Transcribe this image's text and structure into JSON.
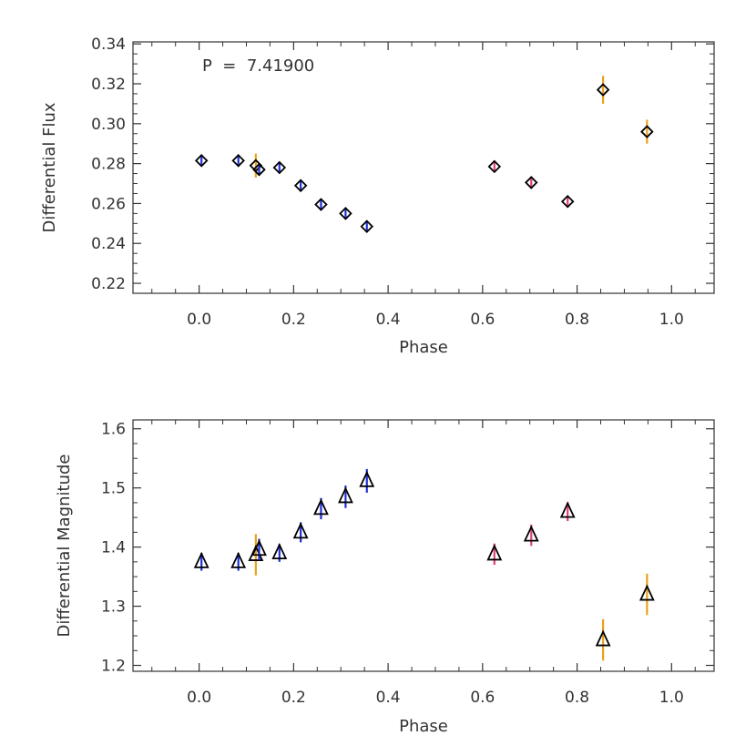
{
  "colors": {
    "blue": "#1f2fd6",
    "pink": "#e0407a",
    "orange": "#e8a21c",
    "axis": "#333333",
    "marker_edge": "#000000"
  },
  "chart_data": [
    {
      "type": "scatter",
      "annotation": "P  =  7.41900",
      "xlabel": "Phase",
      "ylabel": "Differential Flux",
      "xlim": [
        -0.14,
        1.09
      ],
      "ylim": [
        0.215,
        0.341
      ],
      "xticks": [
        0.0,
        0.2,
        0.4,
        0.6,
        0.8,
        1.0
      ],
      "xtick_labels": [
        "0.0",
        "0.2",
        "0.4",
        "0.6",
        "0.8",
        "1.0"
      ],
      "yticks": [
        0.22,
        0.24,
        0.26,
        0.28,
        0.3,
        0.32,
        0.34
      ],
      "ytick_labels": [
        "0.22",
        "0.24",
        "0.26",
        "0.28",
        "0.30",
        "0.32",
        "0.34"
      ],
      "marker": "diamond",
      "points": [
        {
          "x": 0.005,
          "y": 0.2815,
          "err": 0.003,
          "color": "blue"
        },
        {
          "x": 0.083,
          "y": 0.2815,
          "err": 0.003,
          "color": "blue"
        },
        {
          "x": 0.12,
          "y": 0.279,
          "err": 0.006,
          "color": "orange"
        },
        {
          "x": 0.127,
          "y": 0.277,
          "err": 0.003,
          "color": "blue"
        },
        {
          "x": 0.17,
          "y": 0.278,
          "err": 0.003,
          "color": "blue"
        },
        {
          "x": 0.215,
          "y": 0.269,
          "err": 0.003,
          "color": "blue"
        },
        {
          "x": 0.258,
          "y": 0.2595,
          "err": 0.003,
          "color": "blue"
        },
        {
          "x": 0.31,
          "y": 0.255,
          "err": 0.003,
          "color": "blue"
        },
        {
          "x": 0.355,
          "y": 0.2485,
          "err": 0.003,
          "color": "blue"
        },
        {
          "x": 0.625,
          "y": 0.2785,
          "err": 0.003,
          "color": "pink"
        },
        {
          "x": 0.703,
          "y": 0.2705,
          "err": 0.003,
          "color": "pink"
        },
        {
          "x": 0.78,
          "y": 0.261,
          "err": 0.003,
          "color": "pink"
        },
        {
          "x": 0.855,
          "y": 0.317,
          "err": 0.007,
          "color": "orange"
        },
        {
          "x": 0.948,
          "y": 0.296,
          "err": 0.006,
          "color": "orange"
        }
      ]
    },
    {
      "type": "scatter",
      "xlabel": "Phase",
      "ylabel": "Differential Magnitude",
      "xlim": [
        -0.14,
        1.09
      ],
      "ylim": [
        1.19,
        1.615
      ],
      "xticks": [
        0.0,
        0.2,
        0.4,
        0.6,
        0.8,
        1.0
      ],
      "xtick_labels": [
        "0.0",
        "0.2",
        "0.4",
        "0.6",
        "0.8",
        "1.0"
      ],
      "yticks": [
        1.2,
        1.3,
        1.4,
        1.5,
        1.6
      ],
      "ytick_labels": [
        "1.2",
        "1.3",
        "1.4",
        "1.5",
        "1.6"
      ],
      "marker": "triangle",
      "points": [
        {
          "x": 0.005,
          "y": 1.375,
          "err": 0.015,
          "color": "blue"
        },
        {
          "x": 0.083,
          "y": 1.375,
          "err": 0.015,
          "color": "blue"
        },
        {
          "x": 0.12,
          "y": 1.387,
          "err": 0.035,
          "color": "orange"
        },
        {
          "x": 0.127,
          "y": 1.396,
          "err": 0.018,
          "color": "blue"
        },
        {
          "x": 0.17,
          "y": 1.39,
          "err": 0.015,
          "color": "blue"
        },
        {
          "x": 0.215,
          "y": 1.425,
          "err": 0.017,
          "color": "blue"
        },
        {
          "x": 0.258,
          "y": 1.465,
          "err": 0.018,
          "color": "blue"
        },
        {
          "x": 0.31,
          "y": 1.485,
          "err": 0.019,
          "color": "blue"
        },
        {
          "x": 0.355,
          "y": 1.512,
          "err": 0.02,
          "color": "blue"
        },
        {
          "x": 0.625,
          "y": 1.388,
          "err": 0.018,
          "color": "pink"
        },
        {
          "x": 0.703,
          "y": 1.42,
          "err": 0.018,
          "color": "pink"
        },
        {
          "x": 0.78,
          "y": 1.46,
          "err": 0.016,
          "color": "pink"
        },
        {
          "x": 0.855,
          "y": 1.243,
          "err": 0.035,
          "color": "orange"
        },
        {
          "x": 0.948,
          "y": 1.32,
          "err": 0.035,
          "color": "orange"
        }
      ]
    }
  ]
}
